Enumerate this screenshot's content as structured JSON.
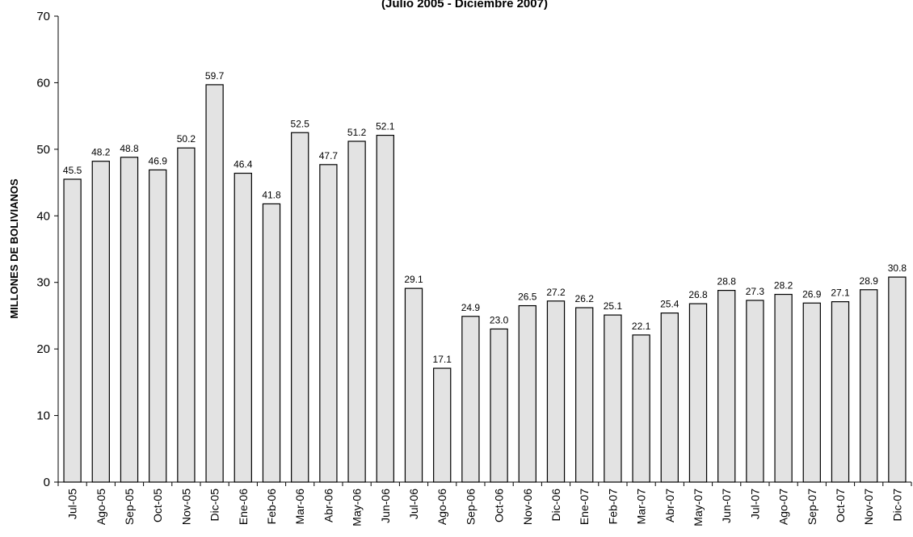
{
  "chart_data": {
    "type": "bar",
    "title": "",
    "subtitle": "(Julio 2005 - Diciembre 2007)",
    "xlabel": "",
    "ylabel": "MILLONES DE BOLIVIANOS",
    "ylim": [
      0,
      70
    ],
    "yticks": [
      0,
      10,
      20,
      30,
      40,
      50,
      60,
      70
    ],
    "grid": false,
    "legend": "none",
    "bar_color": "#e3e3e3",
    "bar_stroke": "#000000",
    "categories": [
      "Jul-05",
      "Ago-05",
      "Sep-05",
      "Oct-05",
      "Nov-05",
      "Dic-05",
      "Ene-06",
      "Feb-06",
      "Mar-06",
      "Abr-06",
      "May-06",
      "Jun-06",
      "Jul-06",
      "Ago-06",
      "Sep-06",
      "Oct-06",
      "Nov-06",
      "Dic-06",
      "Ene-07",
      "Feb-07",
      "Mar-07",
      "Abr-07",
      "May-07",
      "Jun-07",
      "Jul-07",
      "Ago-07",
      "Sep-07",
      "Oct-07",
      "Nov-07",
      "Dic-07"
    ],
    "values": [
      45.5,
      48.2,
      48.8,
      46.9,
      50.2,
      59.7,
      46.4,
      41.8,
      52.5,
      47.7,
      51.2,
      52.1,
      29.1,
      17.1,
      24.9,
      23.0,
      26.5,
      27.2,
      26.2,
      25.1,
      22.1,
      25.4,
      26.8,
      28.8,
      27.3,
      28.2,
      26.9,
      27.1,
      28.9,
      30.8
    ],
    "value_labels": [
      "45.5",
      "48.2",
      "48.8",
      "46.9",
      "50.2",
      "59.7",
      "46.4",
      "41.8",
      "52.5",
      "47.7",
      "51.2",
      "52.1",
      "29.1",
      "17.1",
      "24.9",
      "23.0",
      "26.5",
      "27.2",
      "26.2",
      "25.1",
      "22.1",
      "25.4",
      "26.8",
      "28.8",
      "27.3",
      "28.2",
      "26.9",
      "27.1",
      "28.9",
      "30.8"
    ]
  }
}
